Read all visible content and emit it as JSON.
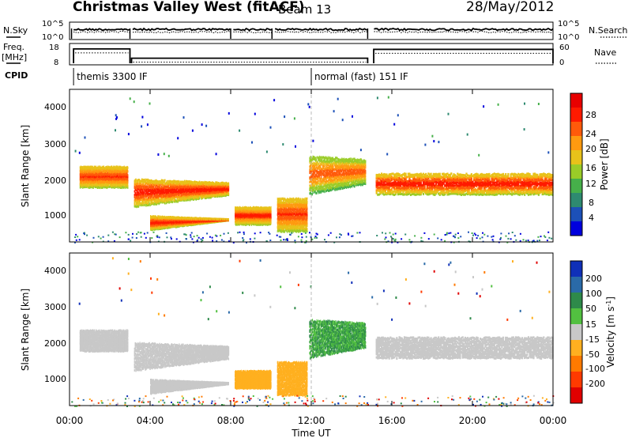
{
  "header": {
    "title": "Christmas Valley West (fitACF)",
    "beam": "Beam 13",
    "date": "28/May/2012"
  },
  "top_panels": {
    "nsky_label": "N.Sky",
    "nsearch_label": "N.Search",
    "n_ticks": [
      "10^5",
      "10^0"
    ],
    "freq_label_line1": "Freq.",
    "freq_label_line2": "[MHz]",
    "freq_ticks": [
      "18",
      "8"
    ],
    "nave_label": "Nave",
    "nave_ticks": [
      "60",
      "0"
    ],
    "cpid_label": "CPID",
    "cpid_segments": [
      {
        "text": "themis 3300 IF",
        "start_hour": 0.2
      },
      {
        "text": "normal (fast) 151 IF",
        "start_hour": 12.0
      }
    ],
    "gaps_hours": [
      [
        3.0,
        3.08
      ],
      [
        8.0,
        8.1
      ],
      [
        10.05,
        10.15
      ],
      [
        14.8,
        15.1
      ]
    ],
    "freq_segments": [
      {
        "from": 0.2,
        "to": 3.0,
        "mhz": 16.5
      },
      {
        "from": 3.08,
        "to": 14.8,
        "mhz": 10.3
      },
      {
        "from": 15.1,
        "to": 24.0,
        "mhz": 16.2
      }
    ]
  },
  "time_axis": {
    "label": "Time UT",
    "ticks": [
      "00:00",
      "04:00",
      "08:00",
      "12:00",
      "16:00",
      "20:00",
      "00:00"
    ],
    "tick_hours": [
      0,
      4,
      8,
      12,
      16,
      20,
      24
    ]
  },
  "power_panel": {
    "ylabel": "Slant Range [km]",
    "yticks": [
      "4000",
      "3000",
      "2000",
      "1000"
    ],
    "colorbar_label": "Power [dB]",
    "colorbar_ticks": [
      "28",
      "24",
      "20",
      "16",
      "12",
      "8",
      "4"
    ],
    "colors": [
      "#0000dd",
      "#1c50b8",
      "#2e8a70",
      "#46b04a",
      "#9acc28",
      "#e8c21a",
      "#ff9a10",
      "#ff5a0a",
      "#ff1a00",
      "#e80000"
    ]
  },
  "velocity_panel": {
    "ylabel": "Slant Range [km]",
    "yticks": [
      "4000",
      "3000",
      "2000",
      "1000"
    ],
    "colorbar_label": "Velocity [m s",
    "colorbar_label_sup": "-1",
    "colorbar_label_end": "]",
    "colorbar_ticks": [
      "200",
      "100",
      "50",
      "15",
      "-15",
      "-50",
      "-100",
      "-200"
    ],
    "colors": [
      "#1030b8",
      "#2a6aa8",
      "#2e8a4a",
      "#52c040",
      "#c8c8c8",
      "#ffb020",
      "#ff7a00",
      "#ff3a00",
      "#e00000"
    ]
  },
  "chart_data": {
    "type": "heatmap",
    "x_range_hours": [
      0,
      24
    ],
    "y_range_km": [
      180,
      4500
    ],
    "power_scale_db": [
      0,
      30
    ],
    "velocity_scale_ms": [
      -200,
      200
    ],
    "echo_bands": [
      {
        "from": 0.5,
        "to": 2.9,
        "range_km": [
          1700,
          2300
        ],
        "power_db": 24,
        "velocity_ms": 0
      },
      {
        "from": 3.2,
        "to": 7.9,
        "range_km": [
          1150,
          1950
        ],
        "power_db": 26,
        "velocity_ms": 0
      },
      {
        "from": 4.0,
        "to": 7.9,
        "range_km": [
          500,
          900
        ],
        "power_db": 26,
        "velocity_ms": -5
      },
      {
        "from": 8.2,
        "to": 10.0,
        "range_km": [
          650,
          1150
        ],
        "power_db": 25,
        "velocity_ms": -60
      },
      {
        "from": 10.3,
        "to": 11.8,
        "range_km": [
          450,
          1400
        ],
        "power_db": 24,
        "velocity_ms": -50
      },
      {
        "from": 11.9,
        "to": 14.7,
        "range_km": [
          1500,
          2600
        ],
        "power_db": 20,
        "velocity_ms": 40
      },
      {
        "from": 15.2,
        "to": 24.0,
        "range_km": [
          1500,
          2100
        ],
        "power_db": 26,
        "velocity_ms": 0
      }
    ]
  }
}
